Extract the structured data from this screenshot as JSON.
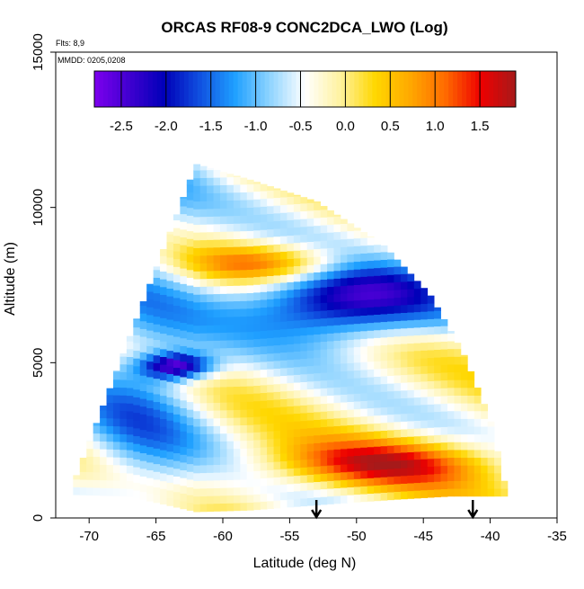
{
  "chart_data": {
    "type": "heatmap",
    "title": "ORCAS RF08-9 CONC2DCA_LWO (Log)",
    "xlabel": "Latitude (deg N)",
    "ylabel": "Altitude (m)",
    "notes": {
      "flights": "Flts: 8,9",
      "dates": "MMDD: 0205,0208"
    },
    "xlim": [
      -72.5,
      -35
    ],
    "ylim": [
      0,
      15000
    ],
    "x_ticks": [
      -70,
      -65,
      -60,
      -55,
      -50,
      -45,
      -40,
      -35
    ],
    "x_tick_labels": [
      "-70",
      "-65",
      "-60",
      "-55",
      "-50",
      "-45",
      "-40",
      "-35"
    ],
    "y_ticks": [
      0,
      5000,
      10000,
      15000
    ],
    "y_tick_labels": [
      "0",
      "5000",
      "10000",
      "15000"
    ],
    "colorbar": {
      "range": [
        -2.8,
        1.9
      ],
      "ticks": [
        -2.5,
        -2.0,
        -1.5,
        -1.0,
        -0.5,
        0.0,
        0.5,
        1.0,
        1.5
      ],
      "tick_labels": [
        "-2.5",
        "-2.0",
        "-1.5",
        "-1.0",
        "-0.5",
        "0.0",
        "0.5",
        "1.0",
        "1.5"
      ],
      "colors": [
        "#7d00ee",
        "#3f00d0",
        "#0000b8",
        "#1050e0",
        "#1fa0ff",
        "#8fd4ff",
        "#ffffff",
        "#fff2a0",
        "#ffd700",
        "#ffa800",
        "#ff6a00",
        "#ee0000",
        "#a61a1a"
      ]
    },
    "envelope": {
      "lower_lat": -71.2,
      "upper_lat": -38.9,
      "top_points": [
        [
          -62.0,
          11400
        ],
        [
          -58.0,
          10900
        ],
        [
          -53.0,
          10200
        ],
        [
          -48.0,
          8800
        ],
        [
          -44.5,
          7200
        ],
        [
          -42.0,
          5300
        ],
        [
          -40.0,
          3200
        ],
        [
          -38.9,
          1100
        ]
      ],
      "bottom_points": [
        [
          -71.2,
          750
        ],
        [
          -67.0,
          700
        ],
        [
          -62.0,
          200
        ],
        [
          -58.0,
          250
        ],
        [
          -52.0,
          450
        ],
        [
          -47.0,
          600
        ],
        [
          -43.0,
          700
        ],
        [
          -38.9,
          700
        ]
      ]
    },
    "features": [
      {
        "label": "cold-band-upper",
        "lat": [
          -58,
          -44
        ],
        "alt": [
          5800,
          8200
        ],
        "value": -2.6
      },
      {
        "label": "warm-band-low",
        "lat": [
          -56,
          -40
        ],
        "alt": [
          1000,
          2500
        ],
        "value": 1.4
      },
      {
        "label": "warm-band-mid",
        "lat": [
          -62,
          -50
        ],
        "alt": [
          7600,
          8800
        ],
        "value": 1.2
      },
      {
        "label": "cold-core-left",
        "lat": [
          -66,
          -61
        ],
        "alt": [
          4600,
          5200
        ],
        "value": -2.4
      },
      {
        "label": "cool-background-left",
        "lat": [
          -71,
          -62
        ],
        "alt": [
          1000,
          6000
        ],
        "value": -0.6
      }
    ],
    "markers": [
      {
        "lat": -53.0,
        "label": "arrow-1"
      },
      {
        "lat": -41.3,
        "label": "arrow-2"
      }
    ],
    "grid": false
  }
}
